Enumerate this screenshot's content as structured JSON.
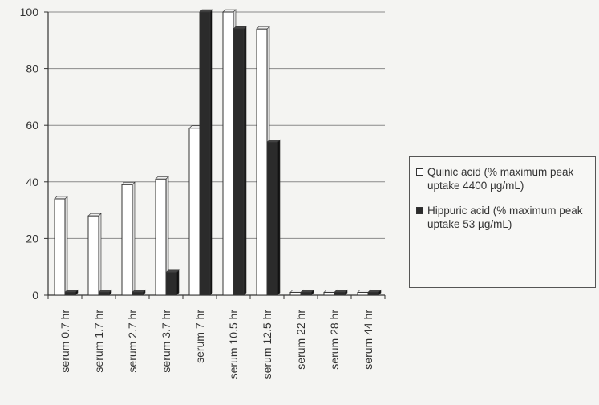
{
  "chart_data": {
    "type": "bar",
    "title": "",
    "xlabel": "",
    "ylabel": "",
    "ylim": [
      0,
      100
    ],
    "yticks": [
      0,
      20,
      40,
      60,
      80,
      100
    ],
    "grid": true,
    "legend_position": "right",
    "categories": [
      "serum 0.7 hr",
      "serum 1.7 hr",
      "serum 2.7 hr",
      "serum 3.7 hr",
      "serum 7 hr",
      "serum 10.5 hr",
      "serum 12.5 hr",
      "serum 22 hr",
      "serum 28 hr",
      "serum 44 hr"
    ],
    "series": [
      {
        "name": "Quinic acid (% maximum peak uptake 4400 µg/mL)",
        "values": [
          34,
          28,
          39,
          41,
          59,
          100,
          94,
          1,
          1,
          1
        ],
        "color": "#ffffff"
      },
      {
        "name": "Hippuric acid (% maximum peak uptake 53 µg/mL)",
        "values": [
          1,
          1,
          1,
          8,
          100,
          94,
          54,
          1,
          1,
          1
        ],
        "color": "#2b2b2b"
      }
    ]
  }
}
